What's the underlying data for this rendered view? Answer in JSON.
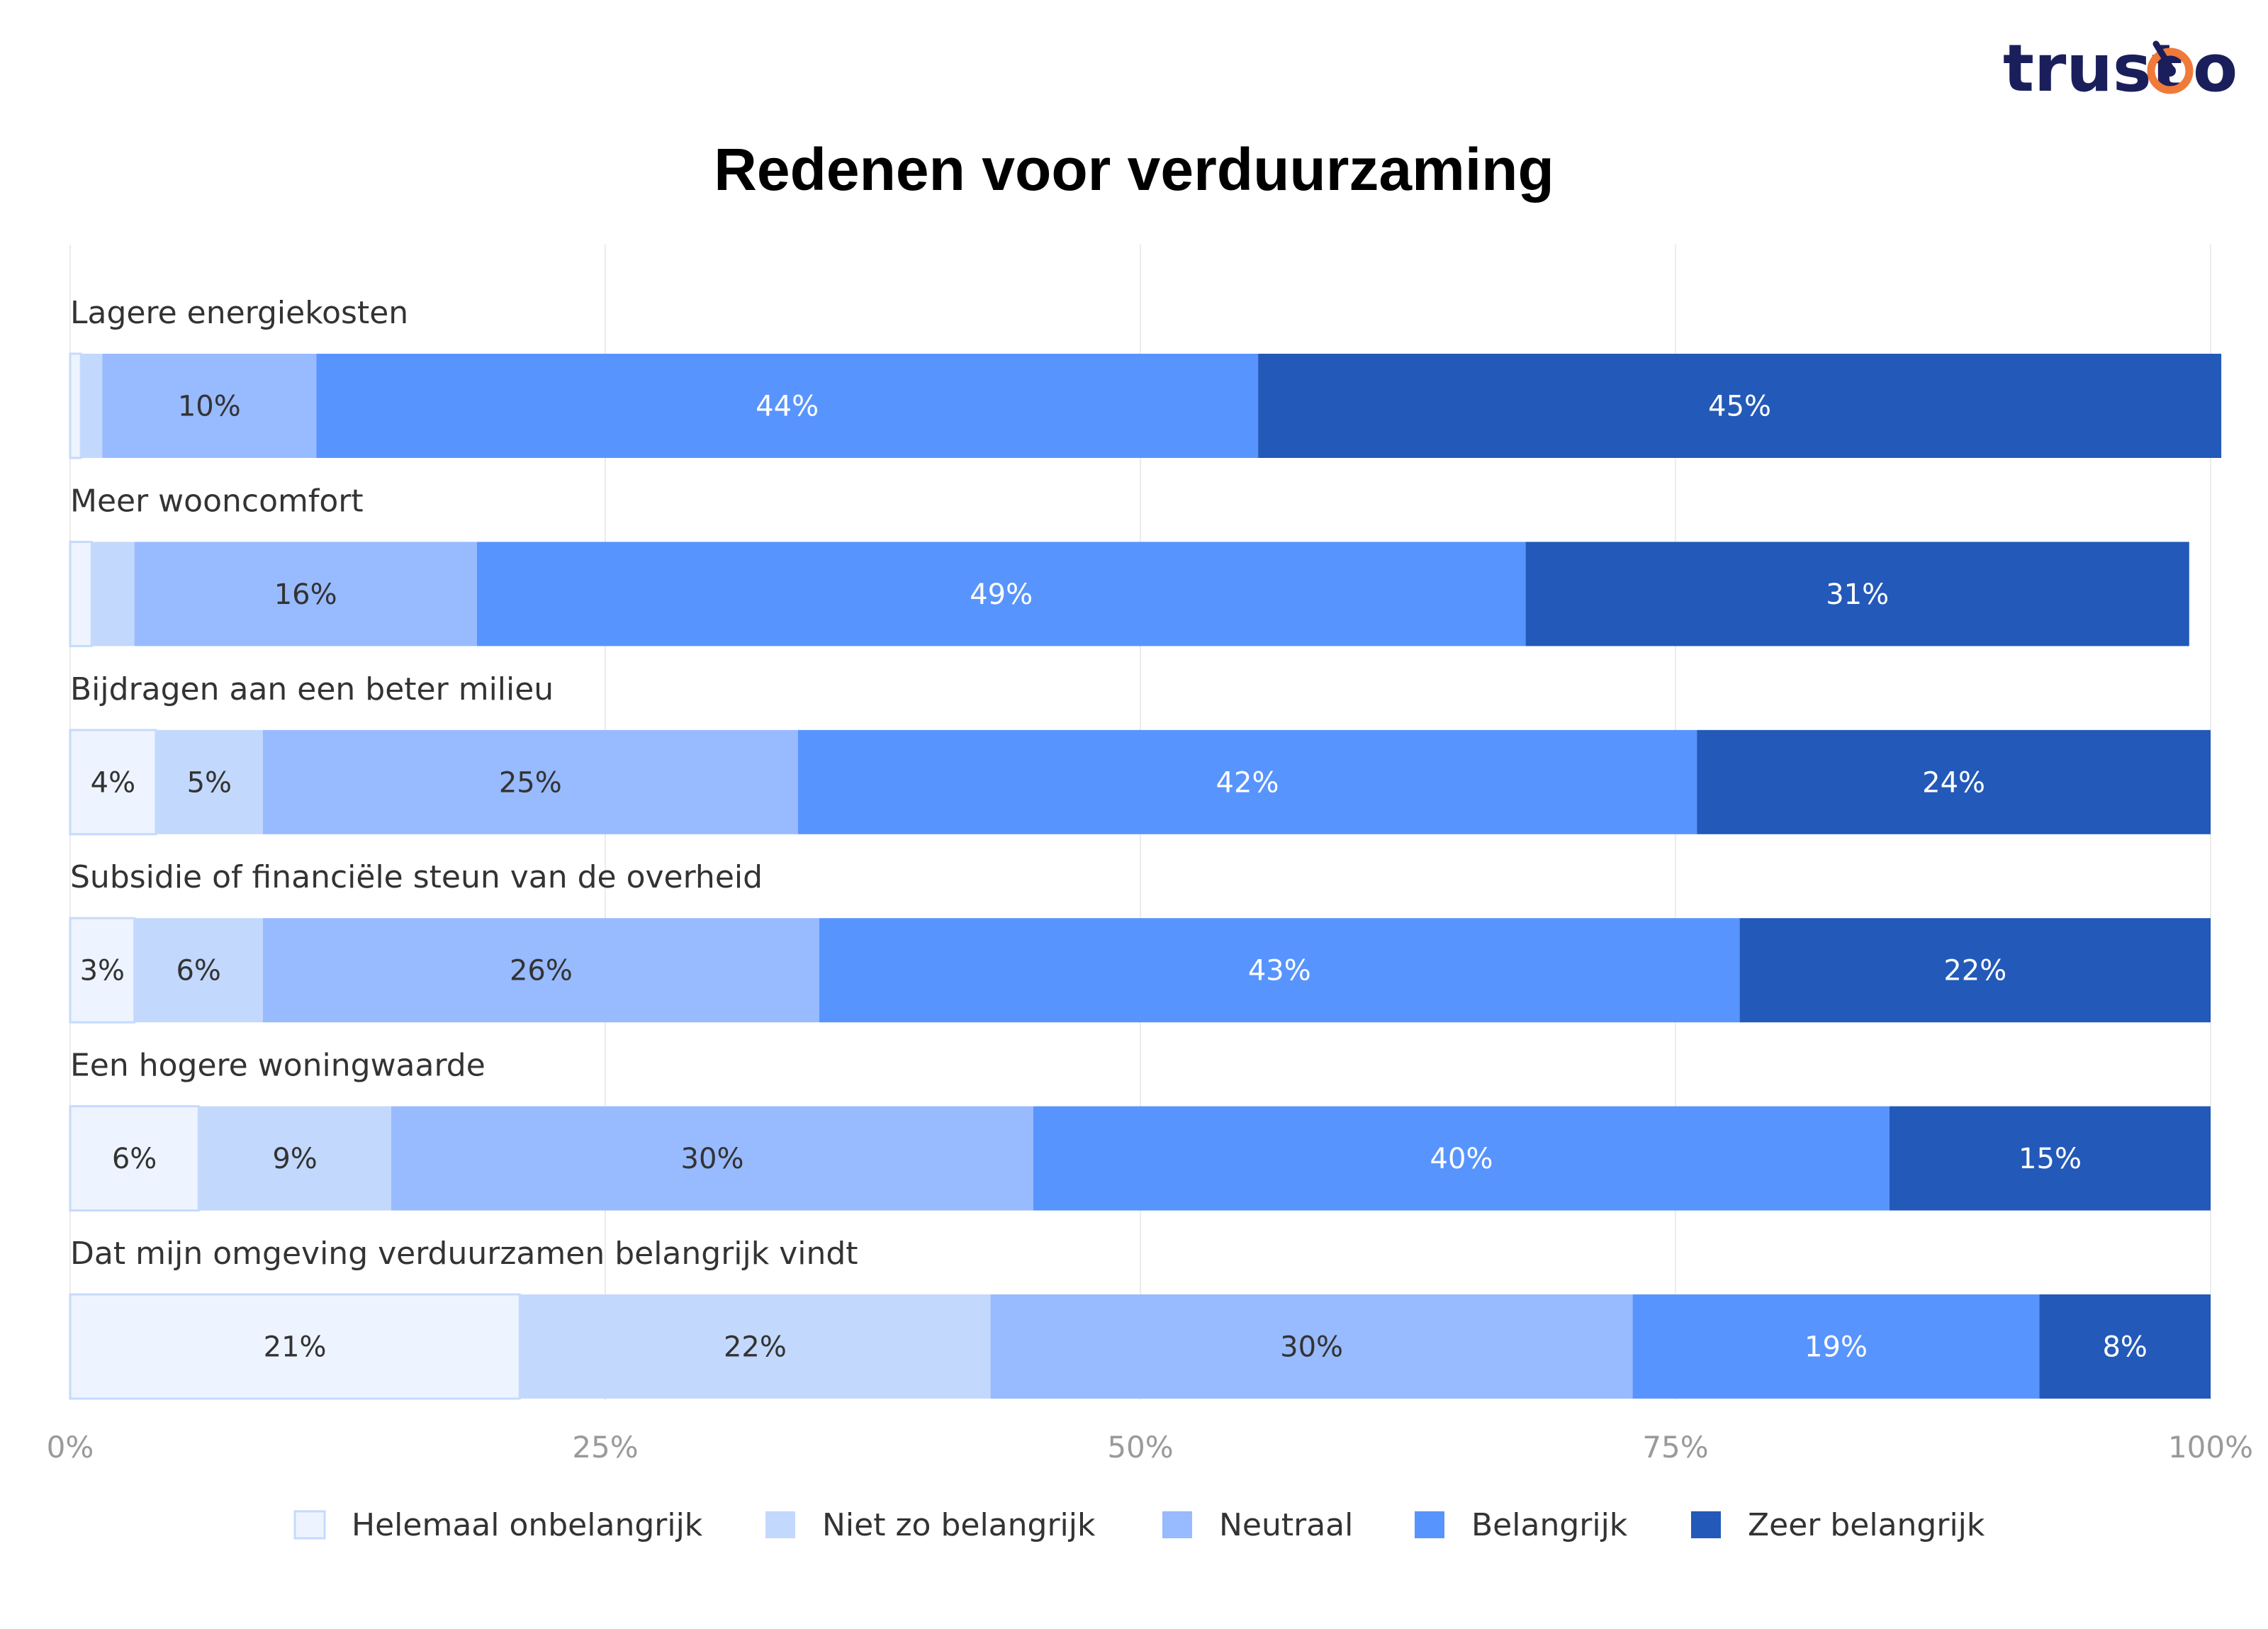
{
  "logo": {
    "text_left": "trust",
    "text_right": "o",
    "color": "#1a1f5c",
    "accent": "#f07a3a"
  },
  "chart_data": {
    "type": "bar",
    "orientation": "horizontal",
    "stacked": true,
    "title": "Redenen voor verduurzaming",
    "categories": [
      "Lagere energiekosten",
      "Meer wooncomfort",
      "Bijdragen aan een beter milieu",
      "Subsidie of financiële steun van de overheid",
      "Een hogere woningwaarde",
      "Dat mijn omgeving verduurzamen belangrijk vindt"
    ],
    "series": [
      {
        "name": "Helemaal onbelangrijk",
        "color": "#eef4ff",
        "border": "#c6dafc",
        "text_color": "#333333",
        "values": [
          0.5,
          1,
          4,
          3,
          6,
          21
        ],
        "labels": [
          "",
          "",
          "4%",
          "3%",
          "6%",
          "21%"
        ]
      },
      {
        "name": "Niet zo belangrijk",
        "color": "#c3d8fd",
        "text_color": "#333333",
        "values": [
          1,
          2,
          5,
          6,
          9,
          22
        ],
        "labels": [
          "",
          "",
          "5%",
          "6%",
          "9%",
          "22%"
        ]
      },
      {
        "name": "Neutraal",
        "color": "#98baff",
        "text_color": "#333333",
        "values": [
          10,
          16,
          25,
          26,
          30,
          30
        ],
        "labels": [
          "10%",
          "16%",
          "25%",
          "26%",
          "30%",
          "30%"
        ]
      },
      {
        "name": "Belangrijk",
        "color": "#5894fe",
        "text_color": "#ffffff",
        "values": [
          44,
          49,
          42,
          43,
          40,
          19
        ],
        "labels": [
          "44%",
          "49%",
          "42%",
          "43%",
          "40%",
          "19%"
        ]
      },
      {
        "name": "Zeer belangrijk",
        "color": "#2359b8",
        "text_color": "#ffffff",
        "values": [
          45,
          31,
          24,
          22,
          15,
          8
        ],
        "labels": [
          "45%",
          "31%",
          "24%",
          "22%",
          "15%",
          "8%"
        ]
      }
    ],
    "xlim": [
      0,
      100
    ],
    "x_ticks": [
      0,
      25,
      50,
      75,
      100
    ],
    "x_tick_labels": [
      "0%",
      "25%",
      "50%",
      "75%",
      "100%"
    ],
    "grid": true,
    "legend_position": "bottom"
  }
}
